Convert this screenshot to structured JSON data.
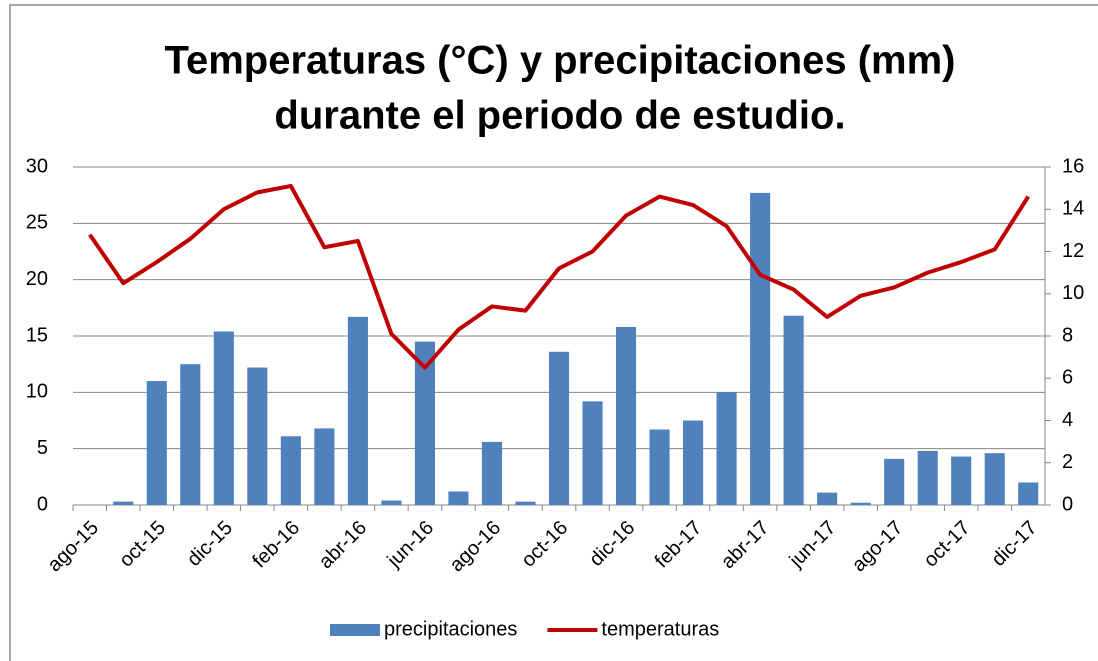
{
  "chart_data": {
    "type": "bar_line",
    "title": [
      "Temperaturas (°C) y precipitaciones (mm)",
      "durante el periodo de estudio."
    ],
    "categories": [
      "ago-15",
      null,
      "oct-15",
      null,
      "dic-15",
      null,
      "feb-16",
      null,
      "abr-16",
      null,
      "jun-16",
      null,
      "ago-16",
      null,
      "oct-16",
      null,
      "dic-16",
      null,
      "feb-17",
      null,
      "abr-17",
      null,
      "jun-17",
      null,
      "ago-17",
      null,
      "oct-17",
      null,
      "dic-17"
    ],
    "series": [
      {
        "name": "precipitaciones",
        "type": "bar",
        "color": "#4f81bd",
        "axis": "y",
        "values": [
          null,
          0.3,
          11,
          12.5,
          15.4,
          12.2,
          6.1,
          6.8,
          16.7,
          0.4,
          14.5,
          1.2,
          5.6,
          0.3,
          13.6,
          9.2,
          15.8,
          6.7,
          7.5,
          10,
          27.7,
          16.8,
          1.1,
          0.2,
          4.1,
          4.8,
          4.3,
          4.6,
          2
        ]
      },
      {
        "name": "temperaturas",
        "type": "line",
        "color": "#c00000",
        "axis": "y2",
        "values": [
          12.8,
          10.5,
          11.5,
          12.6,
          14,
          14.8,
          15.1,
          12.2,
          12.5,
          8.1,
          6.5,
          8.3,
          9.4,
          9.2,
          11.2,
          12,
          13.7,
          14.6,
          14.2,
          13.2,
          10.9,
          10.2,
          8.9,
          9.9,
          10.3,
          11,
          11.5,
          12.1,
          14.6
        ]
      }
    ],
    "ylim": [
      0,
      30
    ],
    "yticks": [
      0,
      5,
      10,
      15,
      20,
      25,
      30
    ],
    "y2lim": [
      0,
      16
    ],
    "y2ticks": [
      0,
      2,
      4,
      6,
      8,
      10,
      12,
      14,
      16
    ],
    "grid": true,
    "legend": "bottom"
  }
}
